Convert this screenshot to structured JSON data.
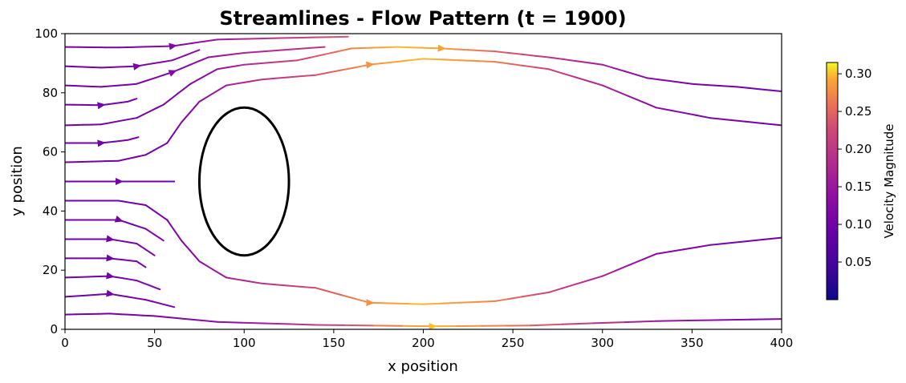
{
  "chart_data": {
    "type": "streamline",
    "title": "Streamlines - Flow Pattern (t = 1900)",
    "xlabel": "x position",
    "ylabel": "y position",
    "xlim": [
      0,
      400
    ],
    "ylim": [
      0,
      100
    ],
    "xticks": [
      0,
      50,
      100,
      150,
      200,
      250,
      300,
      350,
      400
    ],
    "yticks": [
      0,
      20,
      40,
      60,
      80,
      100
    ],
    "grid": false,
    "colormap": "plasma",
    "colorbar": {
      "label": "Velocity Magnitude",
      "range": [
        0,
        0.315
      ],
      "ticks": [
        0.05,
        0.1,
        0.15,
        0.2,
        0.25,
        0.3
      ],
      "tick_labels": [
        "0.05",
        "0.10",
        "0.15",
        "0.20",
        "0.25",
        "0.30"
      ],
      "placement": "right"
    },
    "obstacle": {
      "shape": "ellipse",
      "center": [
        100,
        50
      ],
      "radius_x": 25,
      "radius_y": 25,
      "color": "#000000"
    },
    "streamlines": [
      {
        "points": [
          [
            0,
            95.5
          ],
          [
            30,
            95.3
          ],
          [
            60,
            95.8
          ],
          [
            85,
            98
          ],
          [
            120,
            98.5
          ],
          [
            158,
            99
          ]
        ],
        "v": [
          0.11,
          0.11,
          0.12,
          0.15,
          0.2,
          0.24
        ],
        "arrow_at": 2
      },
      {
        "points": [
          [
            0,
            89
          ],
          [
            20,
            88.5
          ],
          [
            40,
            89
          ],
          [
            60,
            91
          ],
          [
            75,
            94.5
          ]
        ],
        "v": [
          0.1,
          0.1,
          0.11,
          0.12,
          0.13
        ],
        "arrow_at": 2
      },
      {
        "points": [
          [
            0,
            82.5
          ],
          [
            20,
            82
          ],
          [
            40,
            83
          ],
          [
            60,
            87
          ],
          [
            80,
            92
          ],
          [
            100,
            93.5
          ],
          [
            145,
            95.5
          ]
        ],
        "v": [
          0.1,
          0.1,
          0.11,
          0.12,
          0.14,
          0.17,
          0.2
        ],
        "arrow_at": 3
      },
      {
        "points": [
          [
            0,
            76
          ],
          [
            20,
            75.8
          ],
          [
            35,
            77
          ],
          [
            40,
            78
          ]
        ],
        "v": [
          0.1,
          0.1,
          0.11,
          0.11
        ],
        "arrow_at": 1
      },
      {
        "points": [
          [
            0,
            69
          ],
          [
            20,
            69.3
          ],
          [
            40,
            71.5
          ],
          [
            55,
            76
          ],
          [
            70,
            83
          ],
          [
            85,
            88
          ],
          [
            100,
            89.5
          ],
          [
            130,
            91
          ],
          [
            160,
            95
          ],
          [
            185,
            95.5
          ],
          [
            210,
            95
          ],
          [
            240,
            94
          ],
          [
            270,
            92
          ],
          [
            300,
            89.5
          ],
          [
            325,
            85
          ],
          [
            350,
            83
          ],
          [
            375,
            82
          ],
          [
            400,
            80.5
          ]
        ],
        "v": [
          0.1,
          0.1,
          0.1,
          0.11,
          0.12,
          0.14,
          0.18,
          0.22,
          0.27,
          0.3,
          0.29,
          0.25,
          0.2,
          0.16,
          0.13,
          0.11,
          0.1,
          0.1
        ],
        "arrow_at": 10
      },
      {
        "points": [
          [
            0,
            63
          ],
          [
            20,
            63
          ],
          [
            35,
            64
          ],
          [
            41,
            65
          ]
        ],
        "v": [
          0.1,
          0.1,
          0.11,
          0.11
        ],
        "arrow_at": 1
      },
      {
        "points": [
          [
            0,
            56.5
          ],
          [
            30,
            57
          ],
          [
            45,
            59
          ],
          [
            57,
            63
          ],
          [
            65,
            70
          ],
          [
            75,
            77
          ],
          [
            90,
            82.5
          ],
          [
            110,
            84.5
          ],
          [
            140,
            86
          ],
          [
            170,
            89.5
          ],
          [
            200,
            91.5
          ],
          [
            240,
            90.5
          ],
          [
            270,
            88
          ],
          [
            300,
            82.5
          ],
          [
            330,
            75
          ],
          [
            360,
            71.5
          ],
          [
            400,
            69
          ]
        ],
        "v": [
          0.1,
          0.1,
          0.1,
          0.11,
          0.12,
          0.13,
          0.16,
          0.19,
          0.23,
          0.28,
          0.3,
          0.27,
          0.22,
          0.17,
          0.13,
          0.11,
          0.1
        ],
        "arrow_at": 9
      },
      {
        "points": [
          [
            0,
            50
          ],
          [
            30,
            50
          ],
          [
            61,
            50
          ]
        ],
        "v": [
          0.1,
          0.1,
          0.1
        ],
        "arrow_at": 1
      },
      {
        "points": [
          [
            0,
            43.5
          ],
          [
            30,
            43.5
          ],
          [
            45,
            42
          ],
          [
            57,
            37
          ],
          [
            65,
            30
          ],
          [
            75,
            23
          ],
          [
            90,
            17.5
          ],
          [
            110,
            15.5
          ],
          [
            140,
            14
          ],
          [
            170,
            9
          ],
          [
            200,
            8.5
          ],
          [
            240,
            9.5
          ],
          [
            270,
            12.5
          ],
          [
            300,
            18
          ],
          [
            330,
            25.5
          ],
          [
            360,
            28.5
          ],
          [
            400,
            31
          ]
        ],
        "v": [
          0.1,
          0.1,
          0.1,
          0.11,
          0.12,
          0.13,
          0.16,
          0.19,
          0.23,
          0.28,
          0.3,
          0.27,
          0.22,
          0.17,
          0.13,
          0.11,
          0.1
        ],
        "arrow_at": 9
      },
      {
        "points": [
          [
            0,
            37
          ],
          [
            30,
            37
          ],
          [
            45,
            34
          ],
          [
            55,
            30
          ]
        ],
        "v": [
          0.1,
          0.1,
          0.11,
          0.12
        ],
        "arrow_at": 1
      },
      {
        "points": [
          [
            0,
            30.5
          ],
          [
            25,
            30.5
          ],
          [
            40,
            29
          ],
          [
            50,
            25
          ]
        ],
        "v": [
          0.1,
          0.1,
          0.11,
          0.12
        ],
        "arrow_at": 1
      },
      {
        "points": [
          [
            0,
            24
          ],
          [
            25,
            24
          ],
          [
            40,
            23
          ],
          [
            45,
            21
          ]
        ],
        "v": [
          0.1,
          0.1,
          0.11,
          0.11
        ],
        "arrow_at": 1
      },
      {
        "points": [
          [
            0,
            17.5
          ],
          [
            25,
            18
          ],
          [
            40,
            16.5
          ],
          [
            53,
            13.5
          ]
        ],
        "v": [
          0.1,
          0.1,
          0.11,
          0.12
        ],
        "arrow_at": 1
      },
      {
        "points": [
          [
            0,
            11
          ],
          [
            25,
            12
          ],
          [
            45,
            10
          ],
          [
            61,
            7.5
          ]
        ],
        "v": [
          0.1,
          0.1,
          0.11,
          0.12
        ],
        "arrow_at": 1
      },
      {
        "points": [
          [
            0,
            5
          ],
          [
            25,
            5.3
          ],
          [
            50,
            4.5
          ],
          [
            85,
            2.5
          ],
          [
            140,
            1.5
          ],
          [
            205,
            1
          ],
          [
            260,
            1.3
          ],
          [
            330,
            2.8
          ],
          [
            400,
            3.5
          ]
        ],
        "v": [
          0.1,
          0.1,
          0.11,
          0.13,
          0.2,
          0.3,
          0.25,
          0.15,
          0.11
        ],
        "arrow_at": 5
      }
    ]
  }
}
